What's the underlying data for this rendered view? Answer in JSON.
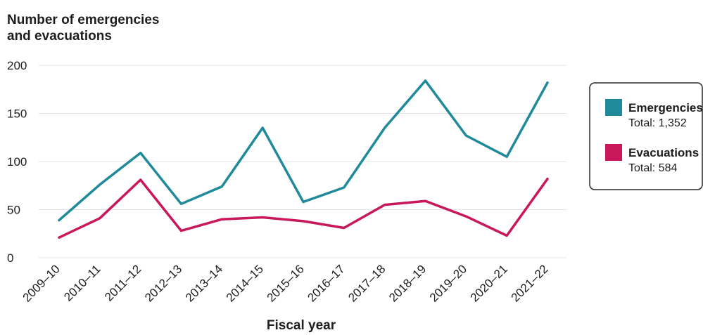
{
  "chart_data": {
    "type": "line",
    "ylabel": [
      "Number of emergencies",
      "and evacuations"
    ],
    "xlabel": "Fiscal year",
    "ylim": [
      0,
      200
    ],
    "yticks": [
      0,
      50,
      100,
      150,
      200
    ],
    "grid": true,
    "legend_position": "right",
    "categories": [
      "2009–10",
      "2010–11",
      "2011–12",
      "2012–13",
      "2013–14",
      "2014–15",
      "2015–16",
      "2016–17",
      "2017–18",
      "2018–19",
      "2019–20",
      "2020–21",
      "2021–22"
    ],
    "series": [
      {
        "name": "Emergencies",
        "total_label": "Total: 1,352",
        "color": "#1f8a9a",
        "values": [
          39,
          76,
          109,
          56,
          74,
          135,
          58,
          73,
          135,
          184,
          127,
          105,
          182
        ]
      },
      {
        "name": "Evacuations",
        "total_label": "Total: 584",
        "color": "#c8175a",
        "values": [
          21,
          41,
          81,
          28,
          40,
          42,
          38,
          31,
          55,
          59,
          43,
          23,
          82
        ]
      }
    ]
  }
}
